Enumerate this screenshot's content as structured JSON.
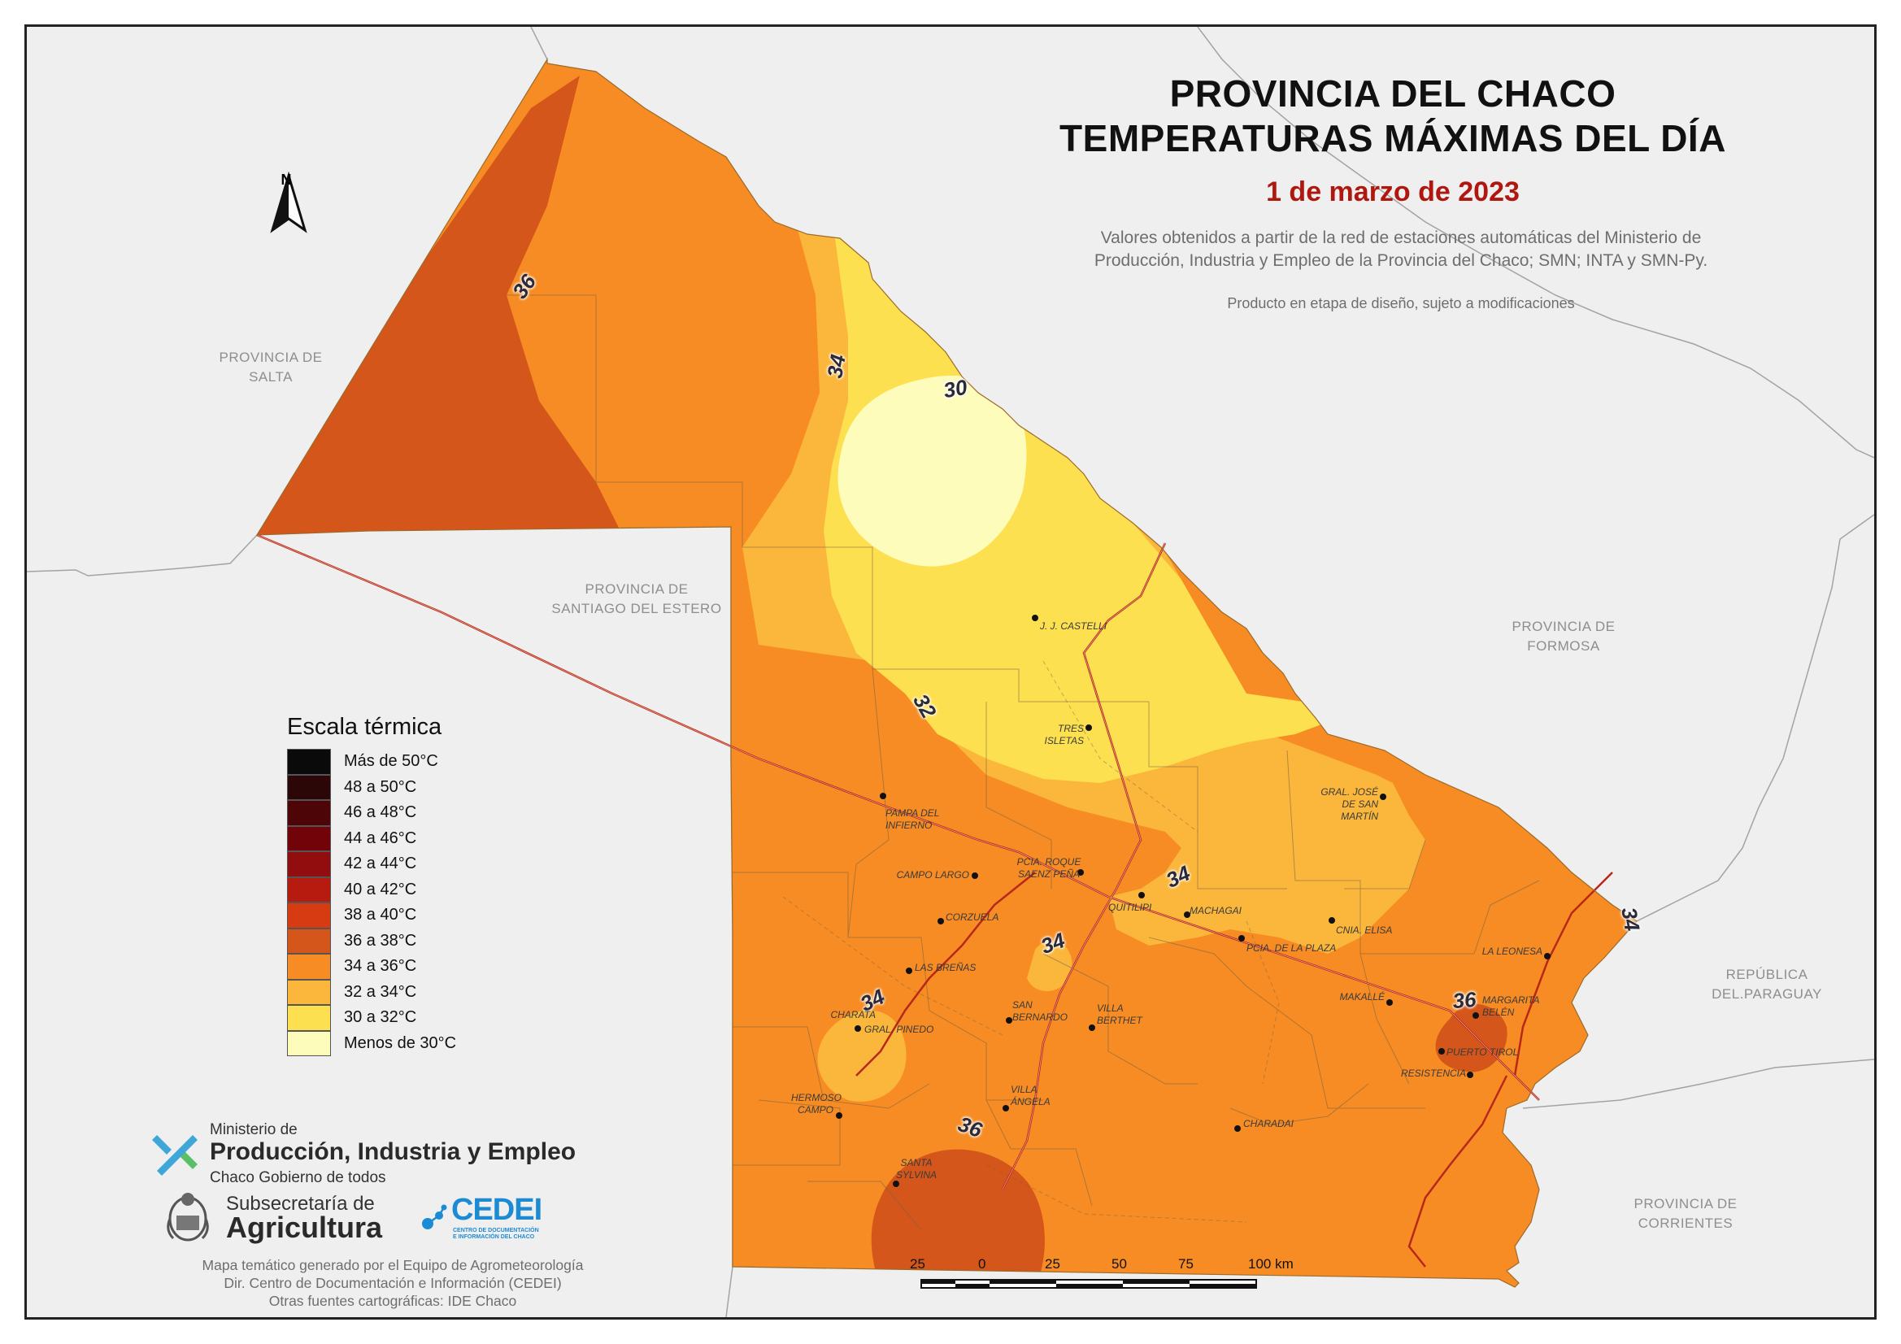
{
  "title_line1": "PROVINCIA DEL CHACO",
  "title_line2": "TEMPERATURAS MÁXIMAS DEL DÍA",
  "date": "1 de marzo de 2023",
  "description_line1": "Valores obtenidos a partir de la red de estaciones automáticas del Ministerio de",
  "description_line2": "Producción, Industria y Empleo de la Provincia del Chaco; SMN; INTA y SMN-Py.",
  "design_note": "Producto en etapa de diseño, sujeto a modificaciones",
  "north_label": "N",
  "neighbors": {
    "salta": [
      "PROVINCIA DE",
      "SALTA"
    ],
    "santiago": [
      "PROVINCIA DE",
      "SANTIAGO DEL ESTERO"
    ],
    "formosa": [
      "PROVINCIA DE",
      "FORMOSA"
    ],
    "paraguay": [
      "REPÚBLICA",
      "DEL.PARAGUAY"
    ],
    "corrientes": [
      "PROVINCIA DE",
      "CORRIENTES"
    ]
  },
  "isotherm_labels": [
    "36",
    "34",
    "30",
    "32",
    "34",
    "34",
    "34",
    "36",
    "34",
    "36"
  ],
  "towns": [
    {
      "lines": [
        "J. J. CASTELLI"
      ]
    },
    {
      "lines": [
        "TRES",
        "ISLETAS"
      ]
    },
    {
      "lines": [
        "GRAL. JOSÉ",
        "DE SAN MARTÍN"
      ]
    },
    {
      "lines": [
        "PAMPA DEL",
        "INFIERNO"
      ]
    },
    {
      "lines": [
        "PCIA. ROQUE",
        "SAENZ PEÑA"
      ]
    },
    {
      "lines": [
        "CAMPO LARGO"
      ]
    },
    {
      "lines": [
        "QUITILIPI"
      ]
    },
    {
      "lines": [
        "MACHAGAI"
      ]
    },
    {
      "lines": [
        "CNIA. ELISA"
      ]
    },
    {
      "lines": [
        "CORZUELA"
      ]
    },
    {
      "lines": [
        "PCIA. DE LA PLAZA"
      ]
    },
    {
      "lines": [
        "LA LEONESA"
      ]
    },
    {
      "lines": [
        "LAS BREÑAS"
      ]
    },
    {
      "lines": [
        "MAKALLÉ"
      ]
    },
    {
      "lines": [
        "MARGARITA",
        "BELÉN"
      ]
    },
    {
      "lines": [
        "CHARATA"
      ]
    },
    {
      "lines": [
        "SAN",
        "BERNARDO"
      ]
    },
    {
      "lines": [
        "VILLA",
        "BERTHET"
      ]
    },
    {
      "lines": [
        "GRAL. PINEDO"
      ]
    },
    {
      "lines": [
        "PUERTO TIROL"
      ]
    },
    {
      "lines": [
        "RESISTENCIA"
      ]
    },
    {
      "lines": [
        "HERMOSO",
        "CAMPO"
      ]
    },
    {
      "lines": [
        "VILLA",
        "ÁNGELA"
      ]
    },
    {
      "lines": [
        "CHARADAI"
      ]
    },
    {
      "lines": [
        "SANTA",
        "SYLVINA"
      ]
    }
  ],
  "legend": {
    "title": "Escala térmica",
    "items": [
      {
        "label": "Más de 50°C",
        "color": "#0a0a0a"
      },
      {
        "label": "48 a 50°C",
        "color": "#2b0708"
      },
      {
        "label": "46 a 48°C",
        "color": "#4e0507"
      },
      {
        "label": "44 a 46°C",
        "color": "#720308"
      },
      {
        "label": "42 a 44°C",
        "color": "#920d0d"
      },
      {
        "label": "40 a 42°C",
        "color": "#b71a0f"
      },
      {
        "label": "38 a 40°C",
        "color": "#d63b12"
      },
      {
        "label": "36 a 38°C",
        "color": "#d4561a"
      },
      {
        "label": "34 a 36°C",
        "color": "#f68c23"
      },
      {
        "label": "32 a 34°C",
        "color": "#fbb73b"
      },
      {
        "label": "30 a 32°C",
        "color": "#fde050"
      },
      {
        "label": "Menos de 30°C",
        "color": "#fefcbb"
      }
    ]
  },
  "branding": {
    "ministry_small": "Ministerio de",
    "ministry_big": "Producción, Industria y Empleo",
    "ministry_sub": "Chaco Gobierno de todos",
    "subsecretaria_small": "Subsecretaría de",
    "subsecretaria_big": "Agricultura",
    "cedei_name": "CEDEI",
    "cedei_sub1": "CENTRO DE DOCUMENTACIÓN",
    "cedei_sub2": "E INFORMACIÓN DEL CHACO"
  },
  "credits": {
    "line1": "Mapa temático generado por el Equipo de Agrometeorología",
    "line2": "Dir. Centro de Documentación e Información (CEDEI)",
    "line3": "Otras fuentes cartográficas: IDE Chaco"
  },
  "scale_bar": {
    "labels": [
      "25",
      "0",
      "25",
      "50",
      "75",
      "100 km"
    ]
  }
}
